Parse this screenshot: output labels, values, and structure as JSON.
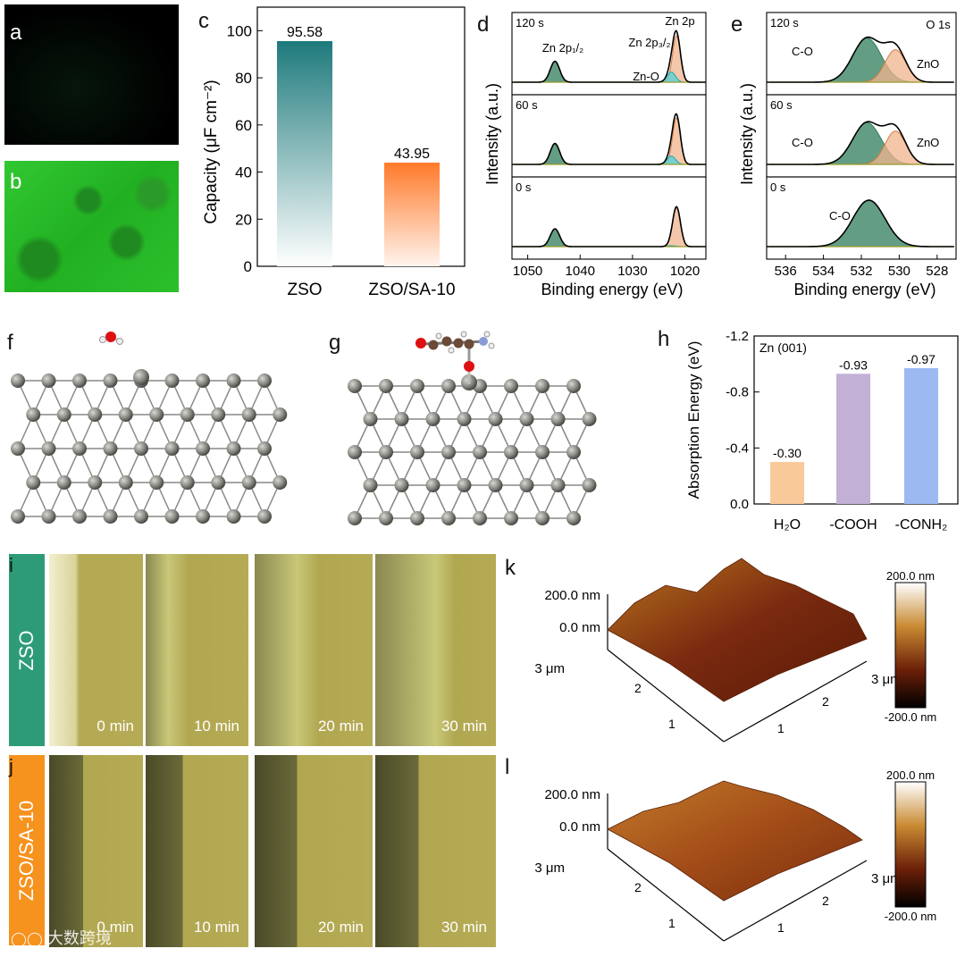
{
  "panels": {
    "a": {
      "label": "a"
    },
    "b": {
      "label": "b"
    },
    "c": {
      "label": "c",
      "chart_data": {
        "type": "bar",
        "categories": [
          "ZSO",
          "ZSO/SA-10"
        ],
        "values": [
          95.58,
          43.95
        ],
        "value_labels": [
          "95.58",
          "43.95"
        ],
        "ylabel": "Capacity (μF cm⁻²)",
        "ylim": [
          0,
          110
        ],
        "yticks": [
          0,
          20,
          40,
          60,
          80,
          100
        ],
        "ytick_labels": [
          "0",
          "20",
          "40",
          "60",
          "80",
          "100"
        ],
        "colors": [
          "#1e7a7c",
          "#ff7a2a"
        ]
      }
    },
    "d": {
      "label": "d",
      "ylabel": "Intensity (a.u.)",
      "xlabel": "Binding energy (eV)",
      "xticks": [
        1050,
        1040,
        1030,
        1020
      ],
      "xtick_labels": [
        "1050",
        "1040",
        "1030",
        "1020"
      ],
      "rows": [
        {
          "time": "120 s",
          "annotations": {
            "p12": "Zn 2p₁/₂",
            "p32": "Zn 2p₃/₂",
            "zn2p": "Zn 2p",
            "zno": "Zn-O"
          }
        },
        {
          "time": "60 s"
        },
        {
          "time": "0 s"
        }
      ]
    },
    "e": {
      "label": "e",
      "ylabel": "Intensity (a.u.)",
      "xlabel": "Binding energy (eV)",
      "xticks": [
        536,
        534,
        532,
        530,
        528
      ],
      "xtick_labels": [
        "536",
        "534",
        "532",
        "530",
        "528"
      ],
      "rows": [
        {
          "time": "120 s",
          "title": "O 1s",
          "co": "C-O",
          "zno": "ZnO"
        },
        {
          "time": "60 s",
          "co": "C-O",
          "zno": "ZnO"
        },
        {
          "time": "0 s",
          "co": "C-O"
        }
      ]
    },
    "f": {
      "label": "f"
    },
    "g": {
      "label": "g"
    },
    "h": {
      "label": "h",
      "chart_data": {
        "type": "bar",
        "title": "Zn (001)",
        "categories": [
          "H₂O",
          "-COOH",
          "-CONH₂"
        ],
        "values": [
          -0.3,
          -0.93,
          -0.97
        ],
        "value_labels": [
          "-0.30",
          "-0.93",
          "-0.97"
        ],
        "ylabel": "Absorption Energy (eV)",
        "ylim": [
          0,
          -1.2
        ],
        "yticks": [
          0,
          -0.4,
          -0.8,
          -1.2
        ],
        "ytick_labels": [
          "0.0",
          "-0.4",
          "-0.8",
          "-1.2"
        ],
        "colors": [
          "#f9c99a",
          "#c2b0d6",
          "#9db9f2"
        ]
      }
    },
    "i": {
      "label": "i",
      "sample": "ZSO",
      "times": [
        "0 min",
        "10 min",
        "20 min",
        "30 min"
      ]
    },
    "j": {
      "label": "j",
      "sample": "ZSO/SA-10",
      "times": [
        "0 min",
        "10 min",
        "20 min",
        "30 min"
      ]
    },
    "k": {
      "label": "k",
      "z_top": "200.0 nm",
      "z_mid": "0.0 nm",
      "x_end": "3 μm",
      "y_end": "3 μm",
      "ticks": [
        "1",
        "2"
      ],
      "cbar_top": "200.0 nm",
      "cbar_bottom": "-200.0 nm"
    },
    "l": {
      "label": "l",
      "z_top": "200.0 nm",
      "z_mid": "0.0 nm",
      "x_end": "3 μm",
      "y_end": "3 μm",
      "ticks": [
        "1",
        "2"
      ],
      "cbar_top": "200.0 nm",
      "cbar_bottom": "-200.0 nm"
    }
  },
  "watermark": "大数跨境"
}
